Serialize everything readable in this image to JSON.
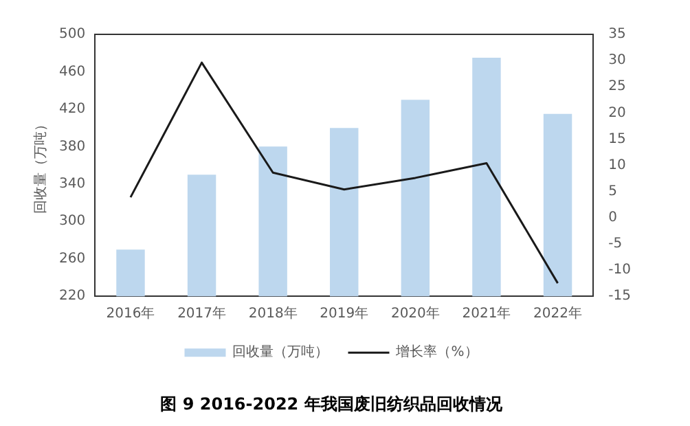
{
  "chart_data": {
    "type": "bar",
    "title": "图 9 2016-2022 年我国废旧纺织品回收情况",
    "ylabel": "回收量（万吨）",
    "categories": [
      "2016年",
      "2017年",
      "2018年",
      "2019年",
      "2020年",
      "2021年",
      "2022年"
    ],
    "series": [
      {
        "name": "回收量（万吨）",
        "color": "#bdd7ee",
        "values": [
          270,
          350,
          380,
          400,
          430,
          475,
          415
        ]
      },
      {
        "name": "增长率（%）",
        "type": "line",
        "axis": "y2",
        "color": "#1a1a1a",
        "marker": "none",
        "values": [
          3.9,
          29.6,
          8.6,
          5.4,
          7.6,
          10.4,
          -12.5
        ]
      }
    ],
    "ylim": [
      220,
      500
    ],
    "yticks": [
      220,
      260,
      300,
      340,
      380,
      420,
      460,
      500
    ],
    "y2lim": [
      -15,
      35
    ],
    "y2ticks": [
      -15,
      -10,
      -5,
      0,
      5,
      10,
      15,
      20,
      25,
      30,
      35
    ],
    "grid": false,
    "legend": "bottom"
  }
}
